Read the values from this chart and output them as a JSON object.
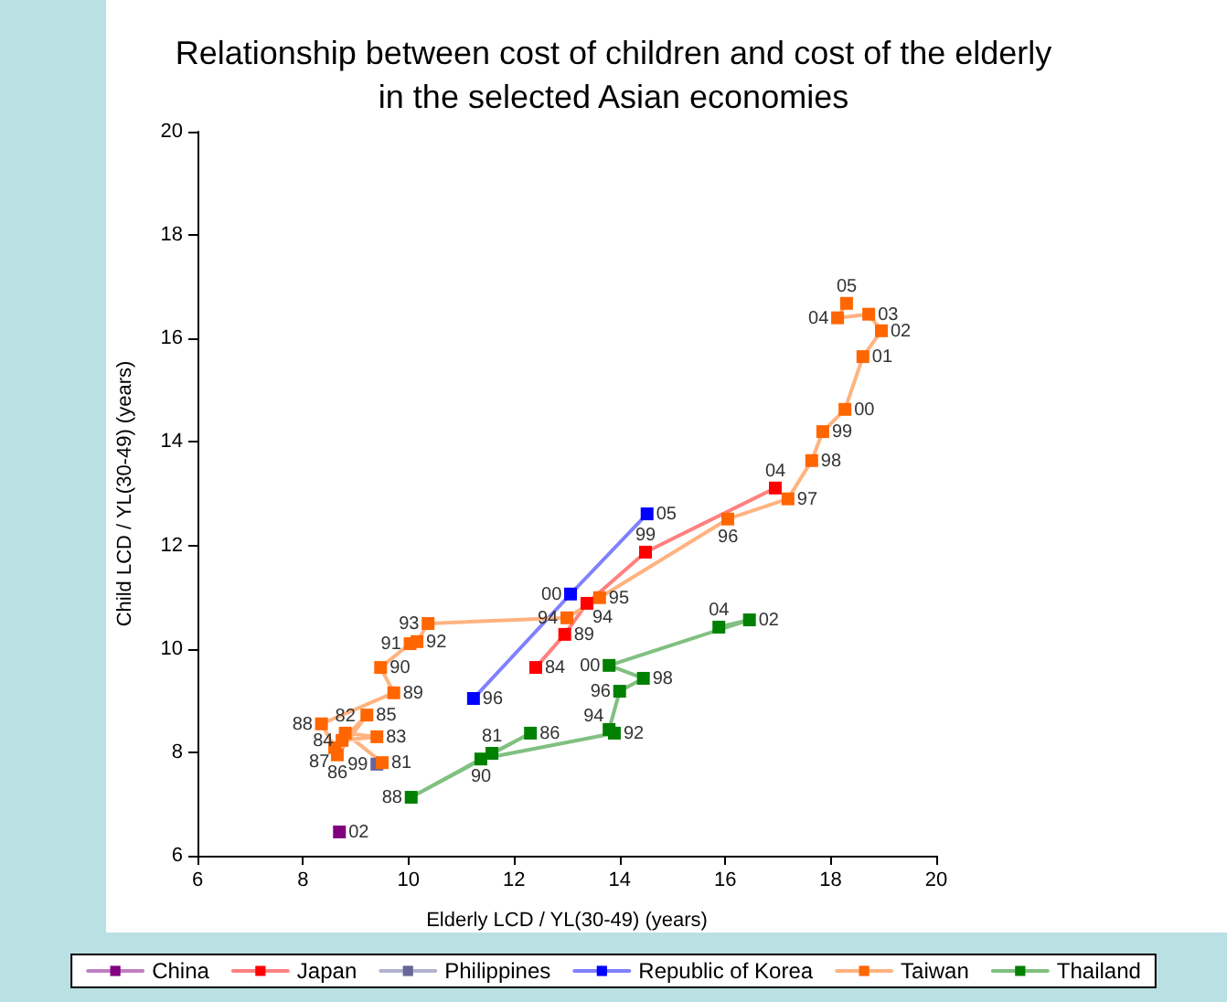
{
  "chart_data": {
    "type": "line",
    "title": "Relationship between cost of children and cost of the elderly\nin the selected Asian economies",
    "xlabel": "Elderly LCD / YL(30-49) (years)",
    "ylabel": "Child LCD / YL(30-49) (years)",
    "xlim": [
      6,
      20
    ],
    "ylim": [
      6,
      20
    ],
    "xticks": [
      6,
      8,
      10,
      12,
      14,
      16,
      18,
      20
    ],
    "yticks": [
      6,
      8,
      10,
      12,
      14,
      16,
      18,
      20
    ],
    "grid": false,
    "legend": "bottom",
    "marker": "square",
    "line_style": "solid",
    "series": [
      {
        "name": "China",
        "color": "#800080",
        "x": [
          8.69
        ],
        "values": [
          6.46
        ]
      },
      {
        "name": "Japan",
        "color": "#ff0000",
        "x": [
          12.41,
          12.96,
          13.38,
          14.49,
          16.95
        ],
        "values": [
          9.64,
          10.28,
          10.88,
          11.87,
          13.11
        ]
      },
      {
        "name": "Philippines",
        "color": "#666699",
        "x": [
          9.4
        ],
        "values": [
          7.77
        ]
      },
      {
        "name": "Republic of Korea",
        "color": "#0000ff",
        "x": [
          11.23,
          13.07,
          14.52
        ],
        "values": [
          9.04,
          11.06,
          12.61
        ]
      },
      {
        "name": "Taiwan",
        "color": "#ff6600",
        "x": [
          9.5,
          8.8,
          9.4,
          8.74,
          9.21,
          8.65,
          8.6,
          8.35,
          9.72,
          9.47,
          10.03,
          10.16,
          10.37,
          13.0,
          13.62,
          16.05,
          17.19,
          17.64,
          17.85,
          18.27,
          18.61,
          18.96,
          18.72,
          18.13,
          18.3
        ],
        "values": [
          7.8,
          8.37,
          8.3,
          8.23,
          8.72,
          7.95,
          8.09,
          8.55,
          9.15,
          9.64,
          10.1,
          10.14,
          10.49,
          10.6,
          10.99,
          12.51,
          12.9,
          13.64,
          14.2,
          14.63,
          15.65,
          16.15,
          16.47,
          16.4,
          16.68
        ]
      },
      {
        "name": "Thailand",
        "color": "#008000",
        "x": [
          11.58,
          12.31,
          10.05,
          11.37,
          13.9,
          13.8,
          14.0,
          14.45,
          13.8,
          16.46,
          15.88
        ],
        "values": [
          7.98,
          8.37,
          7.13,
          7.87,
          8.37,
          8.44,
          9.18,
          9.43,
          9.68,
          10.56,
          10.42
        ]
      }
    ],
    "annotations": [
      {
        "text": "02",
        "x": 8.69,
        "y": 6.46
      },
      {
        "text": "84",
        "x": 12.41,
        "y": 9.64
      },
      {
        "text": "89",
        "x": 12.96,
        "y": 10.28
      },
      {
        "text": "94",
        "x": 13.38,
        "y": 10.88
      },
      {
        "text": "99",
        "x": 14.49,
        "y": 11.87
      },
      {
        "text": "04",
        "x": 16.95,
        "y": 13.11
      },
      {
        "text": "99",
        "x": 9.4,
        "y": 7.77
      },
      {
        "text": "96",
        "x": 11.23,
        "y": 9.04
      },
      {
        "text": "00",
        "x": 13.07,
        "y": 11.06
      },
      {
        "text": "05",
        "x": 14.52,
        "y": 12.61
      },
      {
        "text": "81",
        "x": 9.5,
        "y": 7.8
      },
      {
        "text": "82",
        "x": 8.8,
        "y": 8.37
      },
      {
        "text": "83",
        "x": 9.4,
        "y": 8.3
      },
      {
        "text": "84",
        "x": 8.74,
        "y": 8.23
      },
      {
        "text": "85",
        "x": 9.21,
        "y": 8.72
      },
      {
        "text": "86",
        "x": 8.65,
        "y": 7.95
      },
      {
        "text": "87",
        "x": 8.6,
        "y": 8.09
      },
      {
        "text": "88",
        "x": 8.35,
        "y": 8.55
      },
      {
        "text": "89",
        "x": 9.72,
        "y": 9.15
      },
      {
        "text": "90",
        "x": 9.47,
        "y": 9.64
      },
      {
        "text": "91",
        "x": 10.03,
        "y": 10.1
      },
      {
        "text": "92",
        "x": 10.16,
        "y": 10.14
      },
      {
        "text": "93",
        "x": 10.37,
        "y": 10.49
      },
      {
        "text": "94",
        "x": 13.0,
        "y": 10.6
      },
      {
        "text": "95",
        "x": 13.62,
        "y": 10.99
      },
      {
        "text": "96",
        "x": 16.05,
        "y": 12.51
      },
      {
        "text": "97",
        "x": 17.19,
        "y": 12.9
      },
      {
        "text": "98",
        "x": 17.64,
        "y": 13.64
      },
      {
        "text": "99",
        "x": 17.85,
        "y": 14.2
      },
      {
        "text": "00",
        "x": 18.27,
        "y": 14.63
      },
      {
        "text": "01",
        "x": 18.61,
        "y": 15.65
      },
      {
        "text": "02",
        "x": 18.96,
        "y": 16.15
      },
      {
        "text": "03",
        "x": 18.72,
        "y": 16.47
      },
      {
        "text": "04",
        "x": 18.13,
        "y": 16.4
      },
      {
        "text": "05",
        "x": 18.3,
        "y": 16.68
      },
      {
        "text": "81",
        "x": 11.58,
        "y": 7.98
      },
      {
        "text": "86",
        "x": 12.31,
        "y": 8.37
      },
      {
        "text": "88",
        "x": 10.05,
        "y": 7.13
      },
      {
        "text": "90",
        "x": 11.37,
        "y": 7.87
      },
      {
        "text": "92",
        "x": 13.9,
        "y": 8.37
      },
      {
        "text": "94",
        "x": 13.8,
        "y": 8.44
      },
      {
        "text": "96",
        "x": 14.0,
        "y": 9.18
      },
      {
        "text": "98",
        "x": 14.45,
        "y": 9.43
      },
      {
        "text": "00",
        "x": 13.8,
        "y": 9.68
      },
      {
        "text": "02",
        "x": 16.46,
        "y": 10.56
      },
      {
        "text": "04",
        "x": 15.88,
        "y": 10.42
      }
    ]
  }
}
